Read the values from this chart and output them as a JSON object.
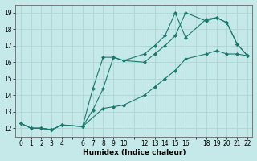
{
  "xlabel": "Humidex (Indice chaleur)",
  "bg_color": "#c5e8e8",
  "grid_color": "#aed4d4",
  "line_color": "#1a7a6e",
  "xlim": [
    -0.5,
    22.5
  ],
  "ylim": [
    11.5,
    19.5
  ],
  "xticks_all": [
    0,
    1,
    2,
    3,
    4,
    5,
    6,
    7,
    8,
    9,
    10,
    11,
    12,
    13,
    14,
    15,
    16,
    17,
    18,
    19,
    20,
    21,
    22
  ],
  "xtick_labels": [
    "0",
    "1",
    "2",
    "3",
    "4",
    "",
    "6",
    "7",
    "8",
    "9",
    "10",
    "",
    "12",
    "13",
    "14",
    "15",
    "16",
    "",
    "18",
    "19",
    "20",
    "21",
    "22"
  ],
  "yticks": [
    12,
    13,
    14,
    15,
    16,
    17,
    18,
    19
  ],
  "series": [
    {
      "x": [
        0,
        1,
        2,
        3,
        4,
        6,
        7,
        8,
        9,
        10,
        12,
        13,
        14,
        15,
        16,
        18,
        19,
        20,
        21,
        22
      ],
      "y": [
        12.3,
        12.0,
        12.0,
        11.9,
        12.2,
        12.1,
        14.4,
        16.3,
        16.3,
        16.1,
        16.5,
        17.0,
        17.6,
        19.0,
        17.5,
        18.6,
        18.7,
        18.4,
        17.1,
        16.4
      ]
    },
    {
      "x": [
        0,
        1,
        2,
        3,
        4,
        6,
        7,
        8,
        9,
        10,
        12,
        13,
        14,
        15,
        16,
        18,
        19,
        20,
        21,
        22
      ],
      "y": [
        12.3,
        12.0,
        12.0,
        11.9,
        12.2,
        12.1,
        13.1,
        14.4,
        16.3,
        16.1,
        16.0,
        16.5,
        17.0,
        17.6,
        19.0,
        18.5,
        18.7,
        18.4,
        17.1,
        16.4
      ]
    },
    {
      "x": [
        0,
        1,
        2,
        3,
        4,
        6,
        8,
        9,
        10,
        12,
        13,
        14,
        15,
        16,
        18,
        19,
        20,
        21,
        22
      ],
      "y": [
        12.3,
        12.0,
        12.0,
        11.9,
        12.2,
        12.1,
        13.2,
        13.3,
        13.4,
        14.0,
        14.5,
        15.0,
        15.5,
        16.2,
        16.5,
        16.7,
        16.5,
        16.5,
        16.4
      ]
    }
  ]
}
